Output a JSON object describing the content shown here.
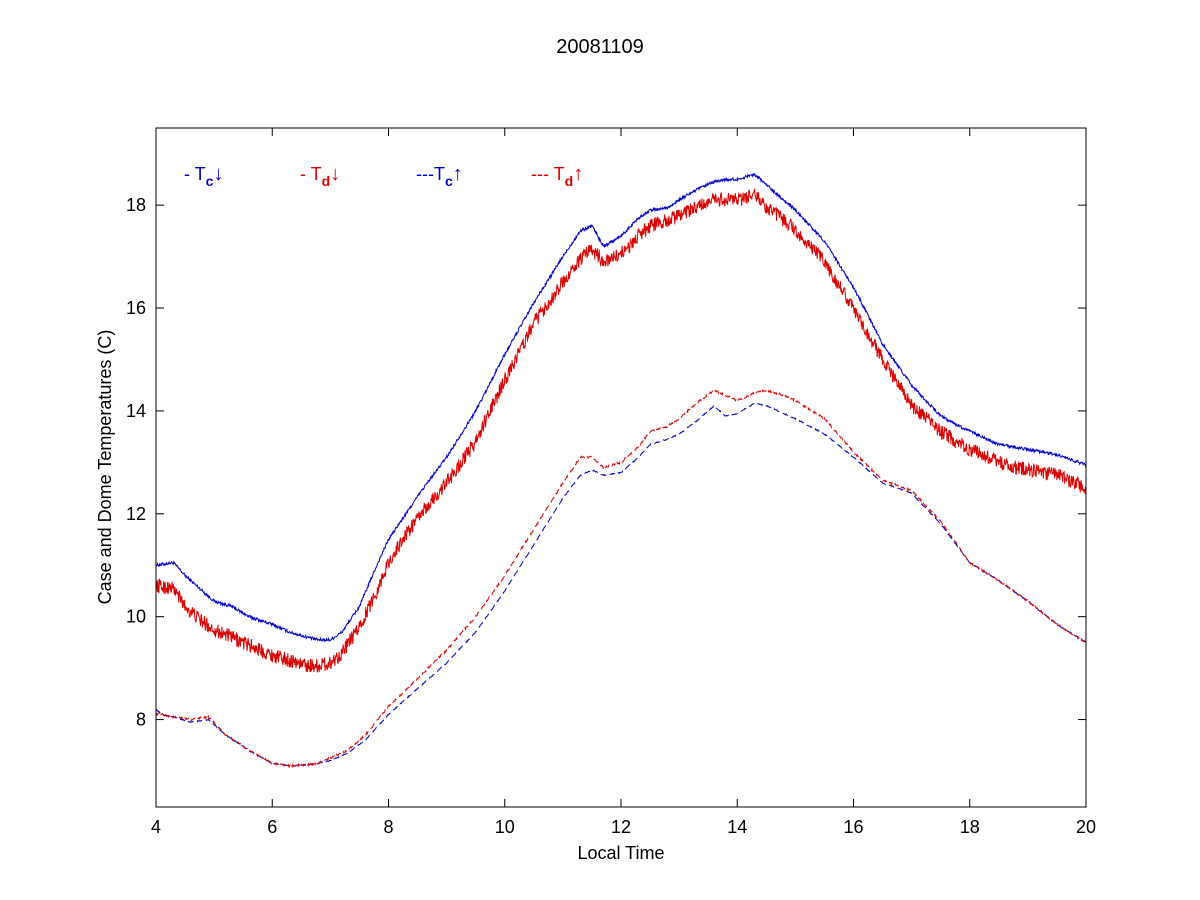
{
  "chart_data": {
    "type": "line",
    "title": "20081109",
    "xlabel": "Local Time",
    "ylabel": "Case and Dome Temperatures (C)",
    "xlim": [
      4,
      20
    ],
    "ylim": [
      6.3,
      19.5
    ],
    "xticks": [
      4,
      6,
      8,
      10,
      12,
      14,
      16,
      18,
      20
    ],
    "yticks": [
      8,
      10,
      12,
      14,
      16,
      18
    ],
    "grid": false,
    "legend_placement": "top-left inside axes, single row",
    "legend": [
      {
        "prefix": "- T",
        "sub": "c",
        "arrow": "↓",
        "color": "#0000cc"
      },
      {
        "prefix": "- T",
        "sub": "d",
        "arrow": "↓",
        "color": "#dd0000"
      },
      {
        "prefix": "---T",
        "sub": "c",
        "arrow": "↑",
        "color": "#0000cc"
      },
      {
        "prefix": "--- T",
        "sub": "d",
        "arrow": "↑",
        "color": "#dd0000"
      }
    ],
    "series": [
      {
        "color": "#0000cc",
        "style": "solid",
        "noise": 0.03,
        "x": [
          4.0,
          4.3,
          4.5,
          4.8,
          5.0,
          5.3,
          5.6,
          6.0,
          6.3,
          6.6,
          6.8,
          7.0,
          7.2,
          7.5,
          7.8,
          8.0,
          8.3,
          8.6,
          9.0,
          9.5,
          10.0,
          10.5,
          11.0,
          11.3,
          11.5,
          11.7,
          12.0,
          12.3,
          12.5,
          12.8,
          13.0,
          13.3,
          13.6,
          13.8,
          14.0,
          14.3,
          14.5,
          14.8,
          15.0,
          15.5,
          16.0,
          16.5,
          17.0,
          17.5,
          18.0,
          18.5,
          19.0,
          19.5,
          20.0
        ],
        "y": [
          11.0,
          11.05,
          10.8,
          10.5,
          10.3,
          10.2,
          10.0,
          9.85,
          9.7,
          9.6,
          9.55,
          9.55,
          9.7,
          10.2,
          11.0,
          11.5,
          12.0,
          12.5,
          13.1,
          14.0,
          15.1,
          16.1,
          17.0,
          17.5,
          17.6,
          17.2,
          17.4,
          17.75,
          17.9,
          17.95,
          18.1,
          18.3,
          18.45,
          18.5,
          18.5,
          18.6,
          18.4,
          18.1,
          17.9,
          17.3,
          16.4,
          15.3,
          14.5,
          13.9,
          13.6,
          13.35,
          13.25,
          13.15,
          12.95
        ]
      },
      {
        "color": "#dd0000",
        "style": "solid",
        "noise": 0.14,
        "x": [
          4.0,
          4.3,
          4.5,
          4.8,
          5.0,
          5.3,
          5.6,
          6.0,
          6.3,
          6.6,
          6.8,
          7.0,
          7.2,
          7.5,
          7.8,
          8.0,
          8.3,
          8.6,
          9.0,
          9.5,
          10.0,
          10.5,
          11.0,
          11.3,
          11.5,
          11.7,
          12.0,
          12.3,
          12.5,
          12.8,
          13.0,
          13.3,
          13.6,
          13.8,
          14.0,
          14.3,
          14.5,
          14.8,
          15.0,
          15.5,
          16.0,
          16.5,
          17.0,
          17.5,
          18.0,
          18.5,
          19.0,
          19.5,
          20.0
        ],
        "y": [
          10.6,
          10.55,
          10.2,
          9.9,
          9.75,
          9.6,
          9.45,
          9.25,
          9.15,
          9.05,
          9.05,
          9.1,
          9.3,
          9.8,
          10.5,
          11.05,
          11.6,
          12.05,
          12.6,
          13.4,
          14.6,
          15.7,
          16.5,
          16.95,
          17.15,
          16.9,
          17.05,
          17.4,
          17.6,
          17.7,
          17.8,
          17.95,
          18.1,
          18.1,
          18.1,
          18.2,
          17.95,
          17.7,
          17.5,
          16.9,
          16.0,
          15.0,
          14.1,
          13.6,
          13.25,
          13.0,
          12.85,
          12.75,
          12.5
        ]
      },
      {
        "color": "#0000cc",
        "style": "dashed",
        "noise": 0.01,
        "x": [
          4.0,
          4.1,
          4.3,
          4.6,
          4.9,
          5.2,
          5.6,
          6.0,
          6.3,
          6.6,
          6.8,
          7.0,
          7.3,
          7.6,
          8.0,
          8.5,
          9.0,
          9.5,
          10.0,
          10.5,
          11.0,
          11.3,
          11.5,
          11.7,
          12.0,
          12.3,
          12.5,
          12.8,
          13.0,
          13.3,
          13.6,
          13.8,
          14.0,
          14.3,
          14.5,
          14.8,
          15.0,
          15.5,
          16.0,
          16.5,
          17.0,
          17.5,
          18.0,
          18.5,
          19.0,
          19.5,
          20.0
        ],
        "y": [
          8.2,
          8.1,
          8.05,
          7.95,
          8.0,
          7.7,
          7.4,
          7.15,
          7.1,
          7.12,
          7.15,
          7.2,
          7.35,
          7.6,
          8.1,
          8.6,
          9.1,
          9.7,
          10.5,
          11.4,
          12.3,
          12.75,
          12.85,
          12.75,
          12.8,
          13.1,
          13.35,
          13.45,
          13.55,
          13.8,
          14.1,
          13.9,
          13.95,
          14.15,
          14.1,
          13.95,
          13.85,
          13.55,
          13.1,
          12.6,
          12.4,
          11.8,
          11.05,
          10.7,
          10.3,
          9.85,
          9.5
        ]
      },
      {
        "color": "#dd0000",
        "style": "dashed",
        "noise": 0.02,
        "x": [
          4.0,
          4.1,
          4.3,
          4.6,
          4.9,
          5.2,
          5.6,
          6.0,
          6.3,
          6.6,
          6.8,
          7.0,
          7.3,
          7.6,
          8.0,
          8.5,
          9.0,
          9.5,
          10.0,
          10.5,
          11.0,
          11.3,
          11.5,
          11.7,
          12.0,
          12.3,
          12.5,
          12.8,
          13.0,
          13.3,
          13.6,
          13.8,
          14.0,
          14.3,
          14.5,
          14.8,
          15.0,
          15.5,
          16.0,
          16.5,
          17.0,
          17.5,
          18.0,
          18.5,
          19.0,
          19.5,
          20.0
        ],
        "y": [
          8.1,
          8.1,
          8.05,
          8.0,
          8.05,
          7.7,
          7.4,
          7.15,
          7.1,
          7.12,
          7.15,
          7.25,
          7.4,
          7.7,
          8.25,
          8.8,
          9.35,
          10.0,
          10.8,
          11.7,
          12.6,
          13.1,
          13.1,
          12.9,
          13.0,
          13.3,
          13.6,
          13.7,
          13.85,
          14.15,
          14.4,
          14.3,
          14.2,
          14.35,
          14.4,
          14.3,
          14.2,
          13.85,
          13.2,
          12.65,
          12.45,
          11.85,
          11.05,
          10.7,
          10.3,
          9.85,
          9.5
        ]
      }
    ]
  }
}
